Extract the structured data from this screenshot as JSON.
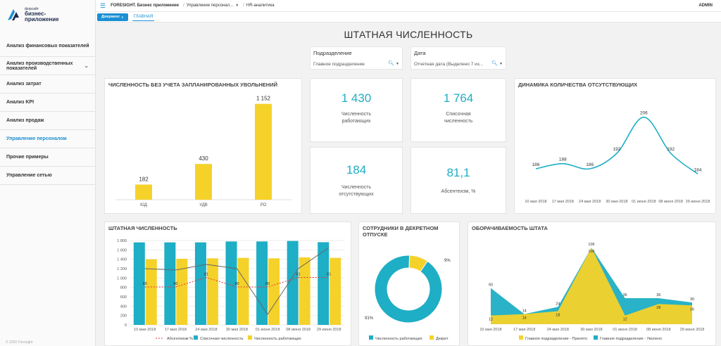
{
  "brand": {
    "small": "форсайт",
    "line1": "бизнес-",
    "line2": "приложение"
  },
  "sidebar": {
    "items": [
      {
        "label": "Анализ финансовых показателей",
        "active": false,
        "chevron": false
      },
      {
        "label": "Анализ производственных показателей",
        "active": false,
        "chevron": true
      },
      {
        "label": "Анализ затрат",
        "active": false,
        "chevron": false
      },
      {
        "label": "Анализ KPI",
        "active": false,
        "chevron": false
      },
      {
        "label": "Анализ продаж",
        "active": false,
        "chevron": false
      },
      {
        "label": "Управление персоналом",
        "active": true,
        "chevron": false
      },
      {
        "label": "Прочие примеры",
        "active": false,
        "chevron": false
      },
      {
        "label": "Управление сетью",
        "active": false,
        "chevron": false
      }
    ],
    "copyright": "© 2020 Foresight"
  },
  "topbar": {
    "crumb1": "FORESIGHT. Бизнес приложение",
    "crumb2": "Управление персонал...",
    "crumb3": "HR-аналитика",
    "user": "ADMIN"
  },
  "tabs": {
    "document": "Документ",
    "main": "ГЛАВНАЯ"
  },
  "page": {
    "title": "ШТАТНАЯ ЧИСЛЕННОСТЬ"
  },
  "filters": {
    "division": {
      "label": "Подразделение",
      "value": "Главное подразделение"
    },
    "date": {
      "label": "Дата",
      "value": "Отчетная дата (Выделено 7 из..."
    }
  },
  "kpis": [
    {
      "value": "1 430",
      "label": "Численность работающих"
    },
    {
      "value": "1 764",
      "label": "Списочная численность"
    },
    {
      "value": "184",
      "label": "Численность отсутствующих"
    },
    {
      "value": "81,1",
      "label": "Абсентеизм, %"
    }
  ],
  "colors": {
    "accent": "#1b8fd3",
    "teal": "#1eaec5",
    "yellow": "#f5d22a",
    "red": "#e8323c",
    "gray": "#6b6b6b"
  },
  "chart_data": [
    {
      "type": "bar",
      "title": "ЧИСЛЕННОСТЬ БЕЗ УЧЕТА ЗАПЛАНИРОВАННЫХ УВОЛЬНЕНИЙ",
      "categories": [
        "ЮД",
        "УДВ",
        "РО"
      ],
      "values": [
        182,
        430,
        1152
      ],
      "value_labels": [
        "182",
        "430",
        "1 152"
      ],
      "ylim": [
        0,
        1200
      ]
    },
    {
      "type": "line",
      "title": "ДИНАМИКА КОЛИЧЕСТВА ОТСУТСТВУЮЩИХ",
      "categories": [
        "10 мая 2018",
        "17 мая 2018",
        "24 мая 2018",
        "30 мая 2018",
        "01 июня 2018",
        "08 июня 2018",
        "29 июня 2018"
      ],
      "values": [
        186,
        188,
        186,
        192,
        206,
        192,
        184
      ],
      "ylim": [
        180,
        210
      ]
    },
    {
      "type": "bar",
      "title": "ШТАТНАЯ ЧИСЛЕННОСТЬ",
      "categories": [
        "10 мая 2018",
        "17 мая 2018",
        "24 мая 2018",
        "30 мая 2018",
        "01 июня 2018",
        "08 июня 2018",
        "29 июня 2018"
      ],
      "yticks": [
        "0",
        "200",
        "400",
        "600",
        "800",
        "1 000",
        "1 200",
        "1 400",
        "1 600",
        "1 800"
      ],
      "ylim": [
        0,
        1800
      ],
      "series": [
        {
          "name": "Списочная численность",
          "type": "bar",
          "values": [
            1760,
            1760,
            1760,
            1780,
            1780,
            1790,
            1764
          ]
        },
        {
          "name": "Численность работающих",
          "type": "bar",
          "values": [
            1400,
            1410,
            1420,
            1430,
            1420,
            1440,
            1430
          ]
        },
        {
          "name": "Абсентеизм %",
          "type": "line",
          "values": [
            80,
            80,
            81,
            80,
            80,
            81,
            81
          ],
          "labels": [
            "80",
            "80",
            "81",
            "80",
            "80",
            "81",
            "81"
          ]
        }
      ]
    },
    {
      "type": "pie",
      "title": "СОТРУДНИКИ В ДЕКРЕТНОМ ОТПУСКЕ",
      "slices": [
        {
          "name": "Численность работающих",
          "value": 91,
          "label": "91%"
        },
        {
          "name": "Декрет",
          "value": 9,
          "label": "9%"
        }
      ]
    },
    {
      "type": "area",
      "title": "ОБОРАЧИВАЕМОСТЬ ШТАТА",
      "categories": [
        "10 мая 2018",
        "17 мая 2018",
        "24 мая 2018",
        "30 мая 2018",
        "01 июня 2018",
        "08 июня 2018",
        "29 июня 2018"
      ],
      "ylim": [
        0,
        110
      ],
      "series": [
        {
          "name": "Главное подразделение - Принято",
          "values": [
            12,
            14,
            18,
            106,
            12,
            28,
            26
          ]
        },
        {
          "name": "Главное подразделение - Уволено",
          "values": [
            50,
            14,
            24,
            106,
            36,
            36,
            30
          ]
        }
      ]
    }
  ]
}
